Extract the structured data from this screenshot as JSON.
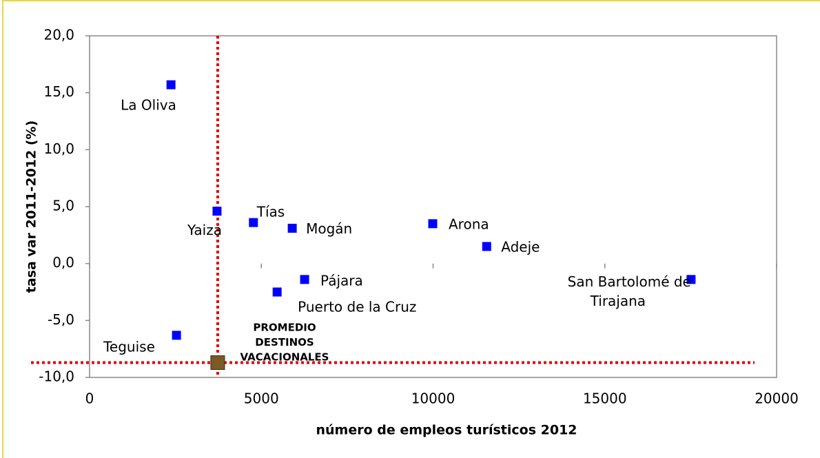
{
  "chart_data": {
    "type": "scatter",
    "xlabel": "número de empleos turísticos 2012",
    "ylabel": "tasa var 2011-2012 (%)",
    "xlim": [
      0,
      20000
    ],
    "ylim": [
      -10,
      20
    ],
    "xticks": [
      0,
      5000,
      10000,
      15000,
      20000
    ],
    "yticks": [
      {
        "value": -10,
        "label": "-10,0"
      },
      {
        "value": -5,
        "label": "-5,0"
      },
      {
        "value": 0,
        "label": "0,0"
      },
      {
        "value": 5,
        "label": "5,0"
      },
      {
        "value": 10,
        "label": "10,0"
      },
      {
        "value": 15,
        "label": "15,0"
      },
      {
        "value": 20,
        "label": "20,0"
      }
    ],
    "grid": false,
    "series": [
      {
        "color": "#0000ff",
        "labels": [
          "La Oliva",
          "Yaiza",
          "Tías",
          "Mogán",
          "Arona",
          "Adeje",
          "Pájara",
          "Puerto de la Cruz",
          "San Bartolomé de Tirajana",
          "Teguise"
        ],
        "x": [
          2370,
          3710,
          4770,
          5900,
          9990,
          11560,
          6260,
          5460,
          17510,
          2530
        ],
        "values": [
          15.7,
          4.6,
          3.6,
          3.1,
          3.5,
          1.5,
          -1.4,
          -2.5,
          -1.4,
          -6.3
        ]
      },
      {
        "color": "#7a5a26",
        "labels": [
          [
            "PROMEDIO",
            "DESTINOS",
            "VACACIONALES"
          ]
        ],
        "x": [
          3730
        ],
        "values": [
          -8.7
        ]
      }
    ]
  }
}
